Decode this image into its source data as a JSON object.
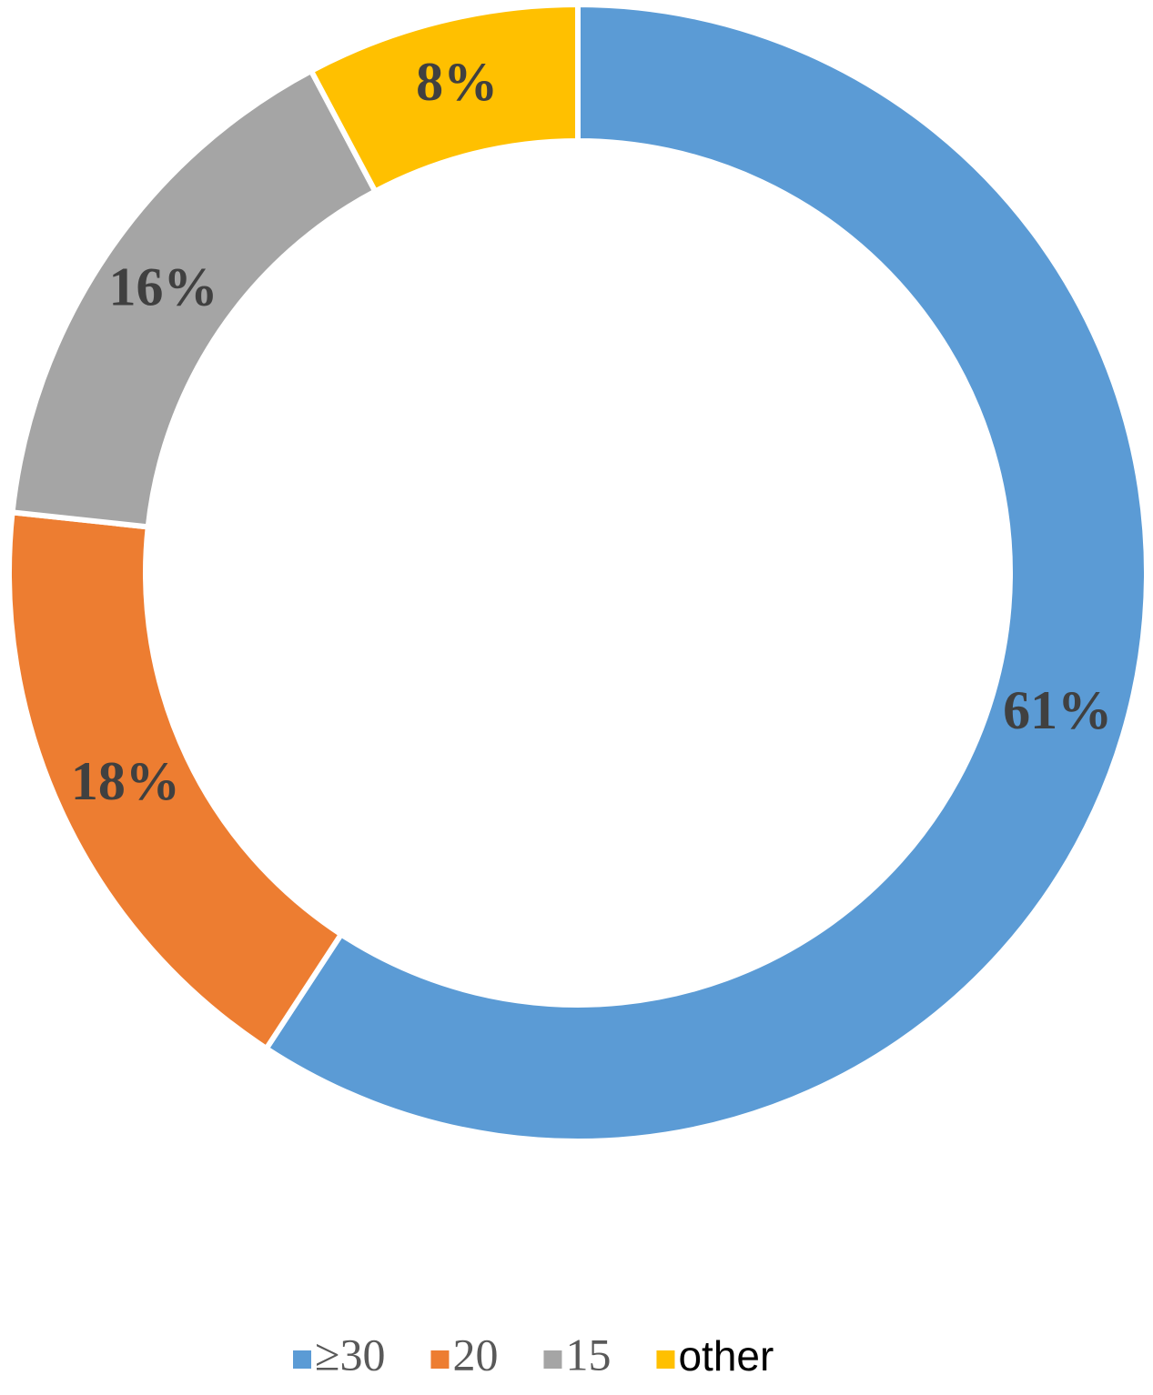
{
  "chart_data": {
    "type": "donut",
    "categories": [
      "≥30",
      "20",
      "15",
      "other"
    ],
    "values": [
      61,
      18,
      16,
      8
    ],
    "value_labels": [
      "61%",
      "18%",
      "16%",
      "8%"
    ],
    "colors": [
      "#5b9bd5",
      "#ed7d31",
      "#a5a5a5",
      "#ffc000"
    ],
    "legend": "bottom"
  }
}
